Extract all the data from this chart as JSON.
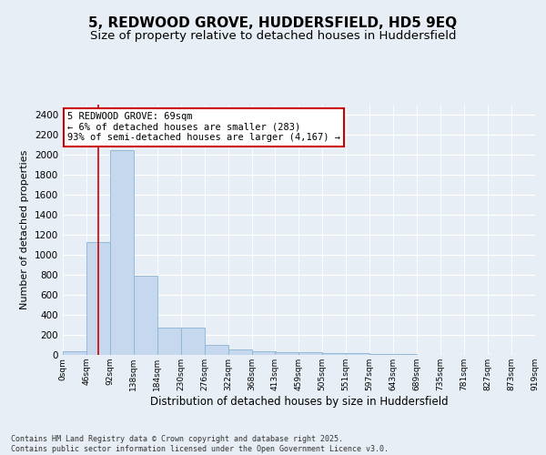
{
  "title_line1": "5, REDWOOD GROVE, HUDDERSFIELD, HD5 9EQ",
  "title_line2": "Size of property relative to detached houses in Huddersfield",
  "xlabel": "Distribution of detached houses by size in Huddersfield",
  "ylabel": "Number of detached properties",
  "bar_color": "#c5d8ee",
  "bar_edgecolor": "#8ab4d4",
  "annotation_box_text": "5 REDWOOD GROVE: 69sqm\n← 6% of detached houses are smaller (283)\n93% of semi-detached houses are larger (4,167) →",
  "annotation_box_color": "#ffffff",
  "annotation_box_edgecolor": "#cc0000",
  "vline_x": 69,
  "vline_color": "#cc0000",
  "footer_text": "Contains HM Land Registry data © Crown copyright and database right 2025.\nContains public sector information licensed under the Open Government Licence v3.0.",
  "bin_edges": [
    0,
    46,
    92,
    138,
    184,
    230,
    276,
    322,
    368,
    413,
    459,
    505,
    551,
    597,
    643,
    689,
    735,
    781,
    827,
    873,
    919
  ],
  "bin_labels": [
    "0sqm",
    "46sqm",
    "92sqm",
    "138sqm",
    "184sqm",
    "230sqm",
    "276sqm",
    "322sqm",
    "368sqm",
    "413sqm",
    "459sqm",
    "505sqm",
    "551sqm",
    "597sqm",
    "643sqm",
    "689sqm",
    "735sqm",
    "781sqm",
    "827sqm",
    "873sqm",
    "919sqm"
  ],
  "bar_heights": [
    35,
    1130,
    2050,
    790,
    270,
    270,
    100,
    55,
    40,
    30,
    25,
    20,
    15,
    10,
    5,
    0,
    0,
    0,
    0,
    0
  ],
  "ylim": [
    0,
    2500
  ],
  "yticks": [
    0,
    200,
    400,
    600,
    800,
    1000,
    1200,
    1400,
    1600,
    1800,
    2000,
    2200,
    2400
  ],
  "background_color": "#e8eef5",
  "plot_background_color": "#e8eef5",
  "title_fontsize": 11,
  "subtitle_fontsize": 9.5
}
